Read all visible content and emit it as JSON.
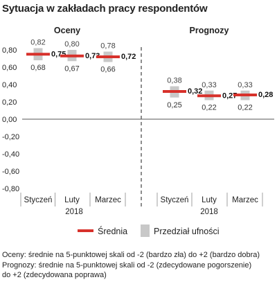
{
  "chart_data": {
    "type": "bar",
    "title": "Sytuacja w zakładach pracy respondentów",
    "ylim": [
      -0.8,
      0.8
    ],
    "yticks": [
      "0,80",
      "0,60",
      "0,40",
      "0,20",
      "0,00",
      "-0,20",
      "-0,40",
      "-0,60",
      "-0,80"
    ],
    "panels": [
      {
        "title": "Oceny",
        "categories": [
          "Styczeń",
          "Luty",
          "Marzec"
        ],
        "year": "2018",
        "mean": [
          0.75,
          0.73,
          0.72
        ],
        "upper": [
          0.82,
          0.8,
          0.78
        ],
        "lower": [
          0.68,
          0.67,
          0.66
        ],
        "mean_labels": [
          "0,75",
          "0,73",
          "0,72"
        ],
        "upper_labels": [
          "0,82",
          "0,80",
          "0,78"
        ],
        "lower_labels": [
          "0,68",
          "0,67",
          "0,66"
        ]
      },
      {
        "title": "Prognozy",
        "categories": [
          "Styczeń",
          "Luty",
          "Marzec"
        ],
        "year": "2018",
        "mean": [
          0.32,
          0.27,
          0.28
        ],
        "upper": [
          0.38,
          0.33,
          0.33
        ],
        "lower": [
          0.25,
          0.22,
          0.22
        ],
        "mean_labels": [
          "0,32",
          "0,27",
          "0,28"
        ],
        "upper_labels": [
          "0,38",
          "0,33",
          "0,33"
        ],
        "lower_labels": [
          "0,25",
          "0,22",
          "0,22"
        ]
      }
    ],
    "legend": {
      "position": "bottom",
      "mean_label": "Średnia",
      "interval_label": "Przedział ufności"
    },
    "grid": false,
    "colors": {
      "mean": "#d7312b",
      "interval": "#c8c8c8",
      "divider": "#666666",
      "axis": "#555555"
    }
  },
  "notes": [
    "Oceny: średnie na 5-punktowej skali od -2 (bardzo zła) do +2 (bardzo dobra)",
    "Prognozy: średnie na 5-punktowej skali od -2 (zdecydowane pogorszenie)",
    "do +2 (zdecydowana poprawa)"
  ]
}
